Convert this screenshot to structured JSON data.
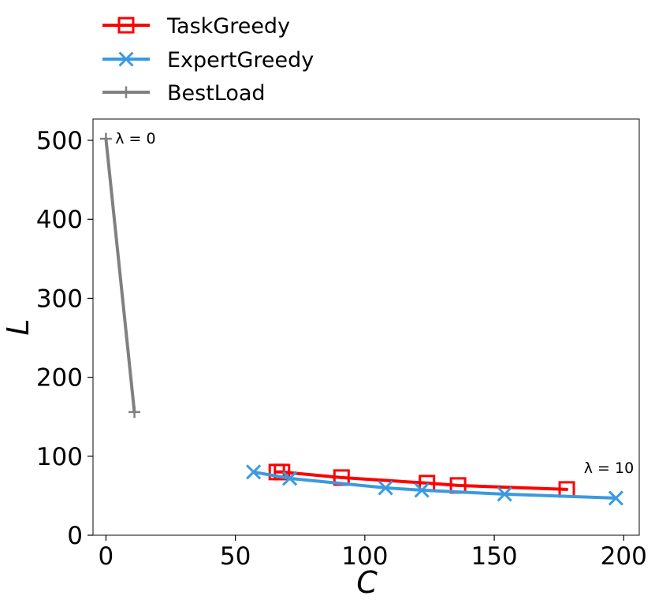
{
  "chart_data": {
    "type": "line",
    "xlabel": "C",
    "ylabel": "L",
    "xlim": [
      -5,
      206
    ],
    "ylim": [
      0,
      527
    ],
    "x_ticks": [
      "0",
      "50",
      "100",
      "150",
      "200"
    ],
    "y_ticks": [
      "0",
      "100",
      "200",
      "300",
      "400",
      "500"
    ],
    "legend_position": "top-left",
    "grid": false,
    "series": [
      {
        "name": "TaskGreedy",
        "color": "#ff0000",
        "marker": "square",
        "points": [
          {
            "x": 66,
            "y": 80
          },
          {
            "x": 68,
            "y": 80
          },
          {
            "x": 91,
            "y": 73
          },
          {
            "x": 124,
            "y": 66
          },
          {
            "x": 136,
            "y": 63
          },
          {
            "x": 178,
            "y": 58
          }
        ]
      },
      {
        "name": "ExpertGreedy",
        "color": "#3a9ae0",
        "marker": "x",
        "points": [
          {
            "x": 57,
            "y": 80
          },
          {
            "x": 71,
            "y": 72
          },
          {
            "x": 108,
            "y": 60
          },
          {
            "x": 122,
            "y": 57
          },
          {
            "x": 154,
            "y": 52
          },
          {
            "x": 197,
            "y": 47
          }
        ]
      },
      {
        "name": "BestLoad",
        "color": "#808080",
        "marker": "plus",
        "points": [
          {
            "x": 0,
            "y": 502
          },
          {
            "x": 11,
            "y": 156
          }
        ]
      }
    ],
    "annotations": [
      {
        "text": "λ = 0",
        "x": 3,
        "y": 502
      },
      {
        "text": "λ = 10",
        "x": 184,
        "y": 85
      }
    ]
  }
}
